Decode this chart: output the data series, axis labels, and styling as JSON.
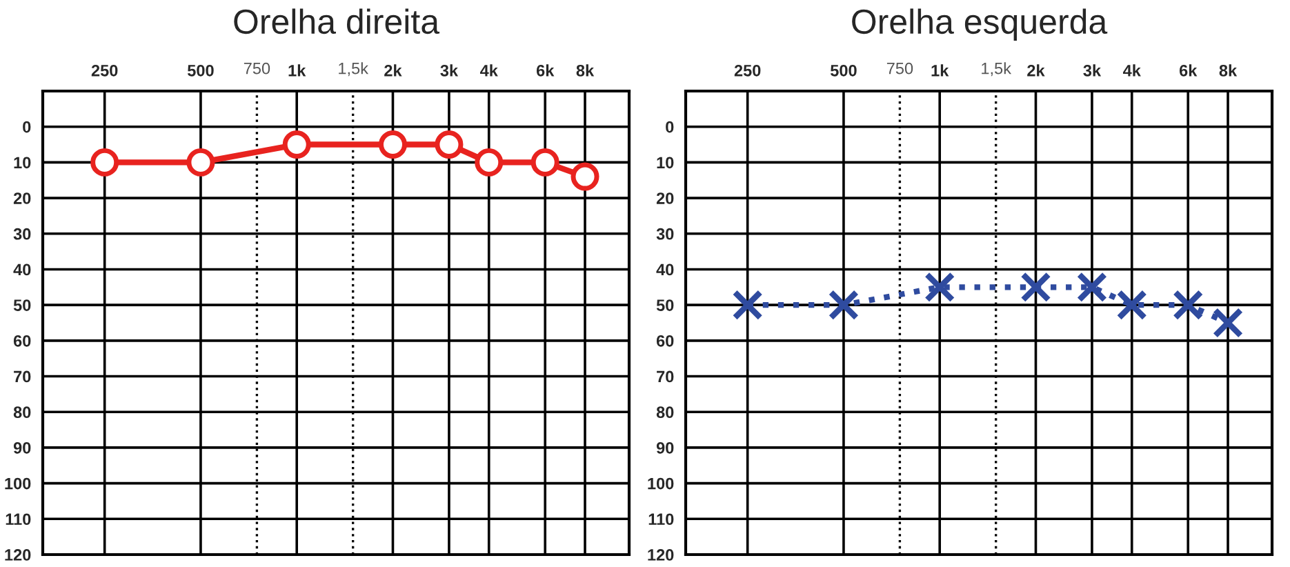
{
  "chart_data": [
    {
      "type": "line",
      "title": "Orelha direita",
      "x": [
        250,
        500,
        1000,
        2000,
        3000,
        4000,
        6000,
        8000
      ],
      "series": [
        {
          "color": "#e8231f",
          "values": [
            10,
            10,
            5,
            5,
            5,
            10,
            10,
            14
          ]
        }
      ],
      "marker": "circle",
      "line_style": "solid",
      "log": "x",
      "grid": true,
      "xlim": [
        160,
        11000
      ],
      "xticks": [
        {
          "value": 250,
          "label": "250"
        },
        {
          "value": 500,
          "label": "500"
        },
        {
          "value": 1000,
          "label": "1k"
        },
        {
          "value": 2000,
          "label": "2k"
        },
        {
          "value": 3000,
          "label": "3k"
        },
        {
          "value": 4000,
          "label": "4k"
        },
        {
          "value": 6000,
          "label": "6k"
        },
        {
          "value": 8000,
          "label": "8k"
        }
      ],
      "ylim": [
        120,
        -10
      ],
      "yticks": [
        0,
        10,
        20,
        30,
        40,
        50,
        60,
        70,
        80,
        90,
        100,
        110,
        120
      ],
      "ref_lines": [
        {
          "axis": "x",
          "value": 750,
          "label": "750",
          "line_style": "dotted"
        },
        {
          "axis": "x",
          "value": 1500,
          "label": "1,5k",
          "line_style": "dotted"
        }
      ]
    },
    {
      "type": "line",
      "title": "Orelha esquerda",
      "x": [
        250,
        500,
        1000,
        2000,
        3000,
        4000,
        6000,
        8000
      ],
      "series": [
        {
          "color": "#2f4b9f",
          "values": [
            50,
            50,
            45,
            45,
            45,
            50,
            50,
            55
          ]
        }
      ],
      "marker": "cross",
      "line_style": "dotted",
      "log": "x",
      "grid": true,
      "xlim": [
        160,
        11000
      ],
      "xticks": [
        {
          "value": 250,
          "label": "250"
        },
        {
          "value": 500,
          "label": "500"
        },
        {
          "value": 1000,
          "label": "1k"
        },
        {
          "value": 2000,
          "label": "2k"
        },
        {
          "value": 3000,
          "label": "3k"
        },
        {
          "value": 4000,
          "label": "4k"
        },
        {
          "value": 6000,
          "label": "6k"
        },
        {
          "value": 8000,
          "label": "8k"
        }
      ],
      "ylim": [
        120,
        -10
      ],
      "yticks": [
        0,
        10,
        20,
        30,
        40,
        50,
        60,
        70,
        80,
        90,
        100,
        110,
        120
      ],
      "ref_lines": [
        {
          "axis": "x",
          "value": 750,
          "label": "750",
          "line_style": "dotted"
        },
        {
          "axis": "x",
          "value": 1500,
          "label": "1,5k",
          "line_style": "dotted"
        }
      ]
    }
  ]
}
